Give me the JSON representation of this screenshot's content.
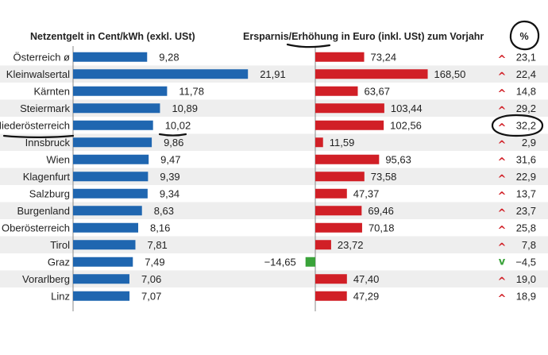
{
  "chart_data": {
    "type": "bar",
    "header_left": "Netzentgelt in Cent/kWh (exkl. USt)",
    "header_right": "Ersparnis/Erhöhung in Euro (inkl. USt) zum Vorjahr",
    "header_pct": "%",
    "categories": [
      "Österreich ø",
      "Kleinwalsertal",
      "Kärnten",
      "Steiermark",
      "Niederösterreich",
      "Innsbruck",
      "Wien",
      "Klagenfurt",
      "Salzburg",
      "Burgenland",
      "Oberösterreich",
      "Tirol",
      "Graz",
      "Vorarlberg",
      "Linz"
    ],
    "series": [
      {
        "values": [
          9.28,
          21.91,
          11.78,
          10.89,
          10.02,
          9.86,
          9.47,
          9.39,
          9.34,
          8.63,
          8.16,
          7.81,
          7.49,
          7.06,
          7.07
        ],
        "labels": [
          "9,28",
          "21,91",
          "11,78",
          "10,89",
          "10,02",
          "9,86",
          "9,47",
          "9,39",
          "9,34",
          "8,63",
          "8,16",
          "7,81",
          "7,49",
          "7,06",
          "7,07"
        ],
        "color": "#1f66b0"
      },
      {
        "values": [
          73.24,
          168.5,
          63.67,
          103.44,
          102.56,
          11.59,
          95.63,
          73.58,
          47.37,
          69.46,
          70.18,
          23.72,
          -14.65,
          47.4,
          47.29
        ],
        "labels": [
          "73,24",
          "168,50",
          "63,67",
          "103,44",
          "102,56",
          "11,59",
          "95,63",
          "73,58",
          "47,37",
          "69,46",
          "70,18",
          "23,72",
          "−14,65",
          "47,40",
          "47,29"
        ],
        "color": "#d11f26",
        "negative_color": "#3aa33a"
      },
      {
        "values": [
          23.1,
          22.4,
          14.8,
          29.2,
          32.2,
          2.9,
          31.6,
          22.9,
          13.7,
          23.7,
          25.8,
          7.8,
          -4.5,
          19.0,
          18.9
        ],
        "labels": [
          "23,1",
          "22,4",
          "14,8",
          "29,2",
          "32,2",
          "2,9",
          "31,6",
          "22,9",
          "13,7",
          "23,7",
          "25,8",
          "7,8",
          "−4,5",
          "19,0",
          "18,9"
        ]
      }
    ],
    "arrow_up": "^",
    "arrow_down": "v",
    "arrow_up_color": "#d11f26",
    "arrow_down_color": "#3aa33a",
    "row_band_color": "#eeeeee"
  }
}
